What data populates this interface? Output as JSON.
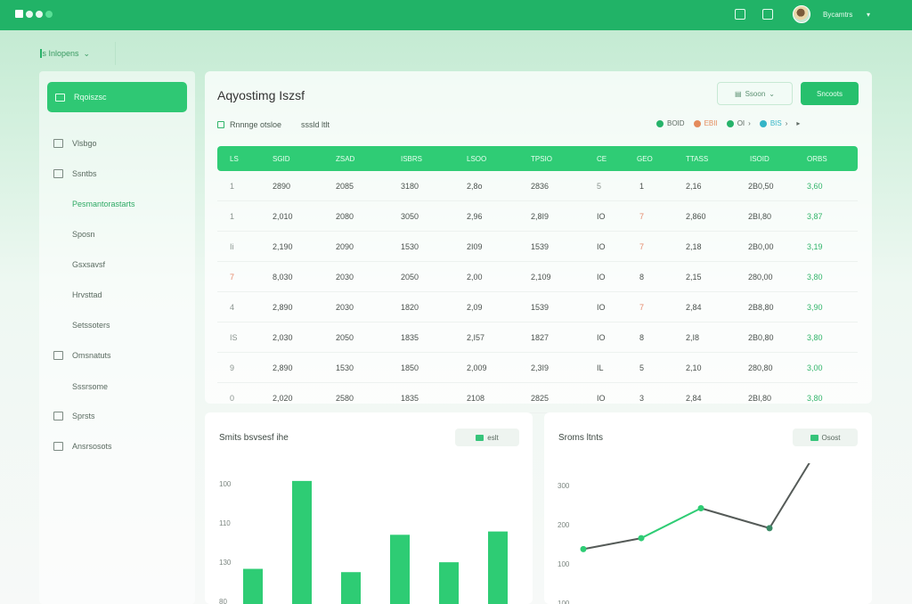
{
  "topbar": {
    "username": "Bycamtrs",
    "caret": "▾"
  },
  "workspace": {
    "label": "Is Inlopens",
    "caret": "⌄"
  },
  "sidebar": {
    "active": "Rqoiszsc",
    "items": [
      {
        "label": "Vlsbgo",
        "icon": "folder-icon"
      },
      {
        "label": "Ssntbs",
        "icon": "box-icon"
      },
      {
        "label": "Pesmantorastarts",
        "icon": "",
        "selected": true
      },
      {
        "label": "Sposn",
        "icon": ""
      },
      {
        "label": "Gsxsavsf",
        "icon": ""
      },
      {
        "label": "Hrvsttad",
        "icon": ""
      },
      {
        "label": "Setssoters",
        "icon": ""
      },
      {
        "label": "Omsnatuts",
        "icon": "tree-icon"
      },
      {
        "label": "Sssrsome",
        "icon": ""
      },
      {
        "label": "Sprsts",
        "icon": "monitor-icon"
      },
      {
        "label": "Ansrsosots",
        "icon": "panel-icon"
      }
    ]
  },
  "main": {
    "title": "Aqyostimg Iszsf",
    "filter_button": "Ssoon",
    "action_button": "Sncoots",
    "filters": [
      "Rnnnge otsloe",
      "sssld ltlt"
    ],
    "legend": [
      {
        "label": "BOID",
        "color": "#26b36a"
      },
      {
        "label": "EBII",
        "color": "#e48b5c"
      },
      {
        "label": "OI",
        "color": "#26b36a"
      },
      {
        "label": "BIS",
        "color": "#34b4c7"
      }
    ]
  },
  "table": {
    "headers": [
      "LS",
      "SGID",
      "ZSAD",
      "ISBRS",
      "LSOO",
      "TPSIO",
      "CE",
      "GEO",
      "TTASS",
      "ISOID",
      "ORBS"
    ],
    "rows": [
      [
        "1",
        "2890",
        "2085",
        "3180",
        "2,8o",
        "2836",
        "5",
        "1",
        "2,16",
        "2B0,50",
        "3,60"
      ],
      [
        "1",
        "2,010",
        "2080",
        "3050",
        "2,96",
        "2,8I9",
        "IO",
        "7",
        "2,860",
        "2BI,80",
        "3,87"
      ],
      [
        "Ii",
        "2,190",
        "2090",
        "1530",
        "2I09",
        "1539",
        "IO",
        "7",
        "2,18",
        "2B0,00",
        "3,19"
      ],
      [
        "7",
        "8,030",
        "2030",
        "2050",
        "2,00",
        "2,109",
        "IO",
        "8",
        "2,15",
        "280,00",
        "3,80"
      ],
      [
        "4",
        "2,890",
        "2030",
        "1820",
        "2,09",
        "1539",
        "IO",
        "7",
        "2,84",
        "2B8,80",
        "3,90"
      ],
      [
        "IS",
        "2,030",
        "2050",
        "1835",
        "2,I57",
        "1827",
        "IO",
        "8",
        "2,I8",
        "2B0,80",
        "3,80"
      ],
      [
        "9",
        "2,890",
        "1530",
        "1850",
        "2,009",
        "2,3I9",
        "IL",
        "5",
        "2,10",
        "280,80",
        "3,00"
      ],
      [
        "0",
        "2,020",
        "2580",
        "1835",
        "2108",
        "2825",
        "IO",
        "3",
        "2,84",
        "2BI,80",
        "3,80"
      ]
    ]
  },
  "bar_chart_card": {
    "title": "Smits bsvsesf ihe",
    "button": "eslt"
  },
  "line_chart_card": {
    "title": "Sroms ltnts",
    "button": "Osost"
  },
  "chart_data": [
    {
      "type": "bar",
      "title": "Smits bsvsesf ihe",
      "yticks": [
        "100",
        "110",
        "130",
        "80"
      ],
      "values": [
        32,
        112,
        29,
        63,
        38,
        66
      ],
      "color": "#2ecc74"
    },
    {
      "type": "line",
      "title": "Sroms ltnts",
      "yticks": [
        "300",
        "200",
        "100",
        "100"
      ],
      "series": [
        {
          "values": [
            120,
            131,
            161,
            141,
            252
          ],
          "segment_colors": [
            "#555b58",
            "#2ecc74",
            "#555b58",
            "#555b58"
          ]
        }
      ]
    }
  ],
  "colors": {
    "accent": "#2ecc74",
    "topbar": "#21b367"
  }
}
